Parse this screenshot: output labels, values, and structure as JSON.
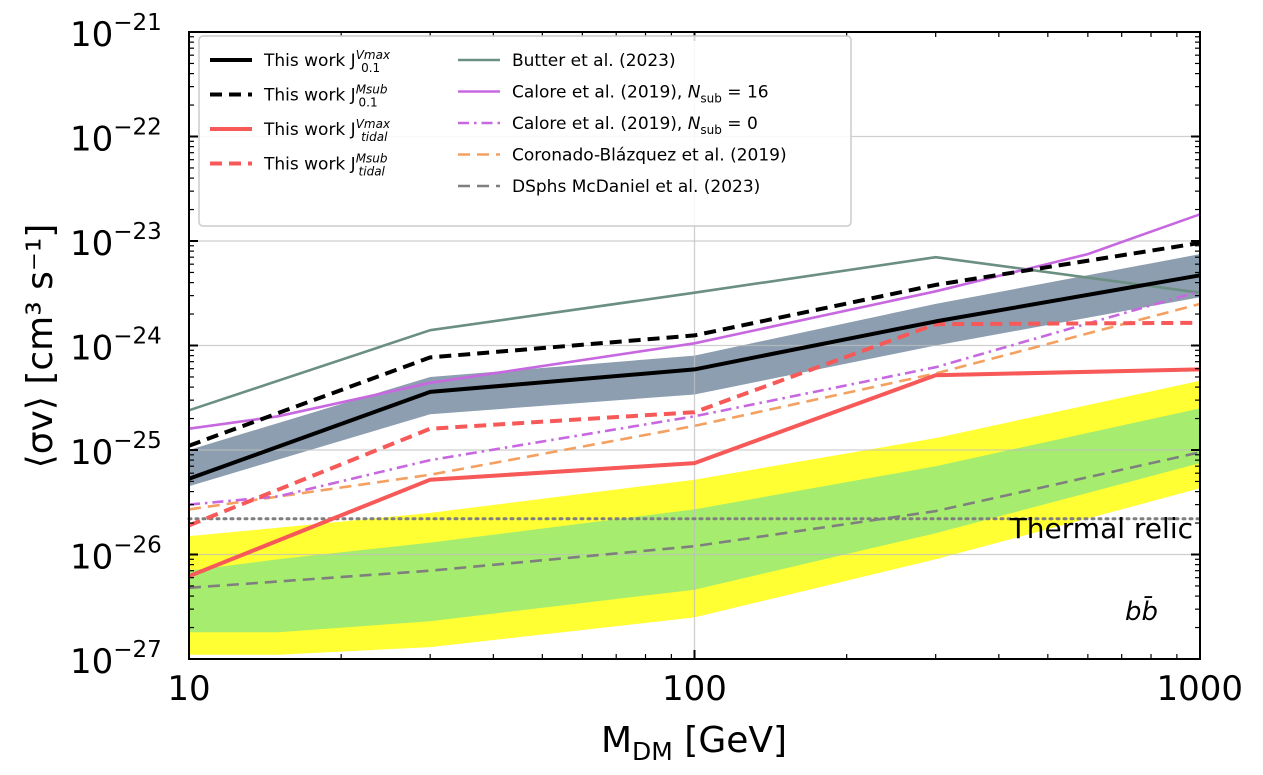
{
  "chart_data": {
    "type": "line",
    "x_scale": "log",
    "y_scale": "log",
    "xlim": [
      10,
      1000
    ],
    "ylim": [
      1e-27,
      1e-21
    ],
    "grid": true,
    "legend_placement": "top-left",
    "xlabel_main": "M",
    "xlabel_sub": "DM",
    "xlabel_unit": " [GeV]",
    "ylabel": "⟨σv⟩ [cm³ s⁻¹]",
    "xtick_labels": [
      "10",
      "100",
      "1000"
    ],
    "ytick_base": "10",
    "ytick_exponents": [
      "−27",
      "−26",
      "−25",
      "−24",
      "−23",
      "−22",
      "−21"
    ],
    "bands": [
      {
        "color": "#ffff33",
        "x": [
          10,
          15,
          30,
          100,
          300,
          1000
        ],
        "lower": [
          1.1e-27,
          1.1e-27,
          1.3e-27,
          2.5e-27,
          9e-27,
          4.3e-26
        ],
        "upper": [
          1.5e-26,
          1.8e-26,
          2.5e-26,
          5.2e-26,
          1.3e-25,
          4.6e-25
        ]
      },
      {
        "color": "#a6ec6e",
        "x": [
          10,
          15,
          30,
          100,
          300,
          1000
        ],
        "lower": [
          1.8e-27,
          1.8e-27,
          2.3e-27,
          4.6e-27,
          1.6e-26,
          7.5e-26
        ],
        "upper": [
          7e-27,
          9e-27,
          1.3e-26,
          2.7e-26,
          7e-26,
          2.5e-25
        ]
      },
      {
        "color": "#8c9eb0",
        "x": [
          10,
          30,
          100,
          300,
          1000
        ],
        "lower": [
          4.5e-26,
          2.2e-25,
          3.4e-25,
          1e-24,
          2.9e-24
        ],
        "upper": [
          1e-25,
          5e-25,
          8e-25,
          2.5e-24,
          7.5e-24
        ]
      }
    ],
    "series": [
      {
        "name": "This work J",
        "sub": "0.1",
        "sup": "Vmax",
        "color": "#000000",
        "dash": "solid",
        "width": 4,
        "x": [
          10,
          30,
          100,
          300,
          1000
        ],
        "y": [
          5.3e-26,
          3.6e-25,
          5.9e-25,
          1.7e-24,
          4.7e-24
        ]
      },
      {
        "name": "This work J",
        "sub": "0.1",
        "sup": "Msub",
        "color": "#000000",
        "dash": "dashed",
        "width": 4,
        "x": [
          10,
          30,
          100,
          300,
          1000
        ],
        "y": [
          1.1e-25,
          7.7e-25,
          1.25e-24,
          3.8e-24,
          9.6e-24
        ]
      },
      {
        "name": "This work J",
        "sub": "tidal",
        "sup": "Vmax",
        "color": "#f75858",
        "dash": "solid",
        "width": 4,
        "x": [
          10,
          30,
          100,
          300,
          1000
        ],
        "y": [
          6.2e-27,
          5.2e-26,
          7.5e-26,
          5.2e-25,
          5.9e-25
        ]
      },
      {
        "name": "This work J",
        "sub": "tidal",
        "sup": "Msub",
        "color": "#f75858",
        "dash": "dashed",
        "width": 4,
        "x": [
          10,
          30,
          100,
          300,
          1000
        ],
        "y": [
          1.9e-26,
          1.6e-25,
          2.3e-25,
          1.6e-24,
          1.65e-24
        ]
      },
      {
        "name": "Butter et al. (2023)",
        "color": "#6b8f80",
        "dash": "solid",
        "width": 2.6,
        "x": [
          10,
          30,
          100,
          300,
          1000
        ],
        "y": [
          2.4e-25,
          1.4e-24,
          3.2e-24,
          7e-24,
          3.2e-24
        ]
      },
      {
        "name": "Calore et al. (2019), ",
        "label_math": "N",
        "label_sub": "sub",
        "label_tail": " = 16",
        "color": "#c868e0",
        "dash": "solid",
        "width": 2.6,
        "x": [
          10,
          15,
          30,
          100,
          300,
          600,
          1000
        ],
        "y": [
          1.6e-25,
          2.1e-25,
          4.4e-25,
          1.05e-24,
          3.3e-24,
          7.5e-24,
          1.8e-23
        ]
      },
      {
        "name": "Calore et al. (2019), ",
        "label_math": "N",
        "label_sub": "sub",
        "label_tail": " = 0",
        "color": "#c868e0",
        "dash": "dashdot",
        "width": 2.6,
        "x": [
          10,
          15,
          30,
          100,
          300,
          1000
        ],
        "y": [
          3e-26,
          3.6e-26,
          8e-26,
          2.1e-25,
          6.2e-25,
          3.3e-24
        ]
      },
      {
        "name": "Coronado-Blázquez et al. (2019)",
        "color": "#f3a060",
        "dash": "dashed",
        "width": 2.6,
        "x": [
          10,
          30,
          100,
          300,
          1000
        ],
        "y": [
          2.7e-26,
          5.8e-26,
          1.7e-25,
          5.4e-25,
          2.5e-24
        ]
      },
      {
        "name": "DSphs McDaniel et al. (2023)",
        "color": "#7f7f7f",
        "dash": "dashed",
        "width": 2.6,
        "x": [
          10,
          30,
          100,
          300,
          1000
        ],
        "y": [
          4.8e-27,
          7e-27,
          1.2e-26,
          2.6e-26,
          9.5e-26
        ]
      }
    ],
    "thermal_relic": {
      "y": 2.2e-26,
      "color": "#7f7f7f",
      "label": "Thermal relic"
    },
    "corner_annotation": "bb̄"
  }
}
